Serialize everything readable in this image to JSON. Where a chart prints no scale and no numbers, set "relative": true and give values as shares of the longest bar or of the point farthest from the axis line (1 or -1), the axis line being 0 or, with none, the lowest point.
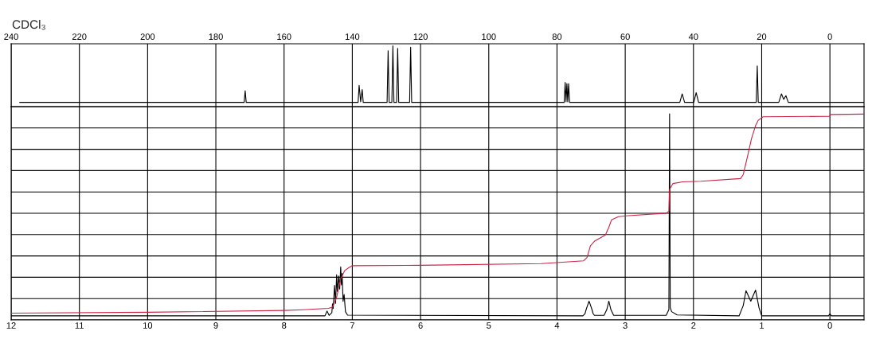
{
  "chart_data": [
    {
      "type": "line",
      "relative": true,
      "annotations": [
        "CDCl₃"
      ],
      "xlim": [
        240,
        -10
      ],
      "xticks": [
        240,
        220,
        200,
        180,
        160,
        140,
        120,
        100,
        80,
        60,
        40,
        20,
        0
      ],
      "grid": "x",
      "tick_labels": "x",
      "series": [
        {
          "color": "#000000",
          "x": [
            237.5,
            171.7,
            171.4,
            171.1,
            138.3,
            138.0,
            137.55,
            137.1,
            136.8,
            129.8,
            129.5,
            129.2,
            128.4,
            128.1,
            127.8,
            127.0,
            126.7,
            126.4,
            123.2,
            122.9,
            122.6,
            77.9,
            77.6,
            77.35,
            77.1,
            76.85,
            76.6,
            76.3,
            44.0,
            43.3,
            42.6,
            39.9,
            39.2,
            38.5,
            21.6,
            21.3,
            21.0,
            15.0,
            14.2,
            13.55,
            12.9,
            12.2,
            -10
          ],
          "values": [
            0.07,
            0.07,
            0.26,
            0.07,
            0.07,
            0.35,
            0.08,
            0.28,
            0.07,
            0.07,
            0.92,
            0.07,
            0.07,
            1.0,
            0.07,
            0.07,
            0.96,
            0.07,
            0.07,
            0.98,
            0.07,
            0.07,
            0.4,
            0.08,
            0.38,
            0.08,
            0.38,
            0.07,
            0.07,
            0.21,
            0.07,
            0.07,
            0.23,
            0.07,
            0.07,
            0.67,
            0.07,
            0.07,
            0.21,
            0.12,
            0.18,
            0.07,
            0.07
          ]
        }
      ]
    },
    {
      "type": "line",
      "relative": true,
      "xlim": [
        12,
        -0.5
      ],
      "xticks": [
        12,
        11,
        10,
        9,
        8,
        7,
        6,
        5,
        4,
        3,
        2,
        1,
        0
      ],
      "grid": true,
      "tick_labels": "x",
      "series": [
        {
          "color": "#000000",
          "x": [
            12.0,
            7.4,
            7.37,
            7.34,
            7.3,
            7.29,
            7.28,
            7.26,
            7.245,
            7.23,
            7.22,
            7.2,
            7.185,
            7.17,
            7.16,
            7.15,
            7.135,
            7.12,
            7.1,
            7.07,
            3.62,
            3.59,
            3.57,
            3.53,
            3.49,
            3.47,
            3.45,
            3.31,
            3.27,
            3.24,
            3.21,
            3.17,
            2.4,
            2.36,
            2.35,
            2.34,
            2.32,
            2.24,
            1.33,
            1.27,
            1.23,
            1.16,
            1.09,
            1.04,
            1.0,
            0.02,
            0.0,
            -0.02,
            -0.5
          ],
          "values": [
            0.02,
            0.02,
            0.043,
            0.022,
            0.035,
            0.078,
            0.055,
            0.168,
            0.08,
            0.219,
            0.138,
            0.213,
            0.15,
            0.258,
            0.17,
            0.226,
            0.09,
            0.123,
            0.04,
            0.023,
            0.02,
            0.03,
            0.053,
            0.091,
            0.053,
            0.03,
            0.022,
            0.022,
            0.05,
            0.091,
            0.05,
            0.022,
            0.022,
            0.05,
            1.0,
            0.06,
            0.04,
            0.024,
            0.02,
            0.07,
            0.142,
            0.091,
            0.145,
            0.06,
            0.02,
            0.02,
            0.03,
            0.02,
            0.02
          ]
        },
        {
          "color": "#cc2244",
          "x": [
            12.0,
            10.0,
            8.0,
            7.73,
            7.35,
            7.29,
            7.23,
            7.17,
            7.11,
            7.05,
            7.0,
            6.0,
            4.23,
            3.61,
            3.56,
            3.51,
            3.45,
            3.29,
            3.24,
            3.2,
            3.1,
            2.99,
            2.4,
            2.36,
            2.35,
            2.3,
            2.16,
            1.89,
            1.31,
            1.27,
            1.21,
            1.15,
            1.09,
            1.05,
            0.98,
            0.01,
            -0.01,
            -0.5
          ],
          "values": [
            0.033,
            0.037,
            0.046,
            0.049,
            0.056,
            0.062,
            0.11,
            0.2,
            0.24,
            0.254,
            0.263,
            0.265,
            0.273,
            0.287,
            0.303,
            0.36,
            0.382,
            0.412,
            0.45,
            0.486,
            0.501,
            0.505,
            0.518,
            0.527,
            0.633,
            0.662,
            0.67,
            0.673,
            0.686,
            0.706,
            0.79,
            0.879,
            0.943,
            0.969,
            0.986,
            0.988,
            0.997,
            0.999
          ]
        }
      ]
    }
  ]
}
